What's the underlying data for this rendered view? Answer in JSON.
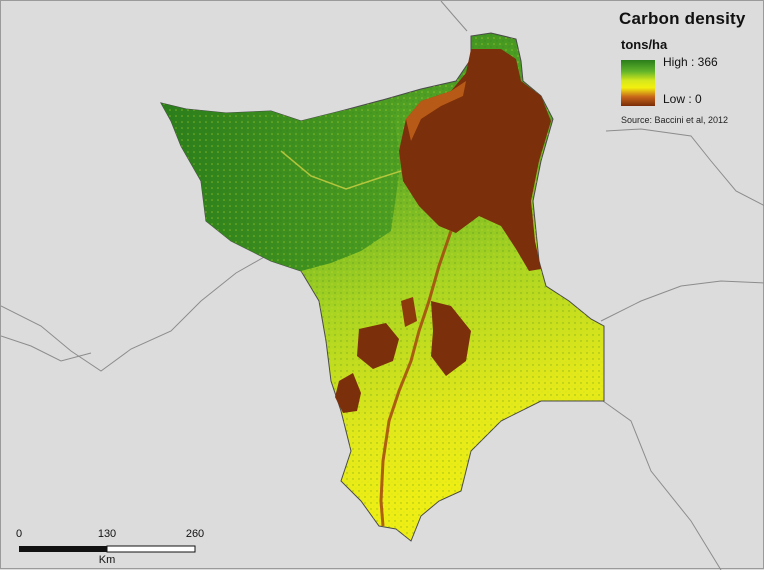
{
  "legend": {
    "title": "Carbon density",
    "unit": "tons/ha",
    "high_label": "High : 366",
    "low_label": "Low : 0",
    "source": "Source: Baccini et al, 2012",
    "ramp_colors": [
      "#2a7d1b",
      "#63b52a",
      "#d6e81c",
      "#f3f00e",
      "#c8651a",
      "#7a2c08"
    ]
  },
  "scale_bar": {
    "ticks": [
      "0",
      "130",
      "260"
    ],
    "unit": "Km"
  },
  "map_colors": {
    "background": "#dcdcdc",
    "forest_high": "#2f861d",
    "forest_mid": "#7bbd2a",
    "savanna": "#dfe61a",
    "low_carbon": "#7b2f0a",
    "boundary": "#8a8a8a"
  }
}
